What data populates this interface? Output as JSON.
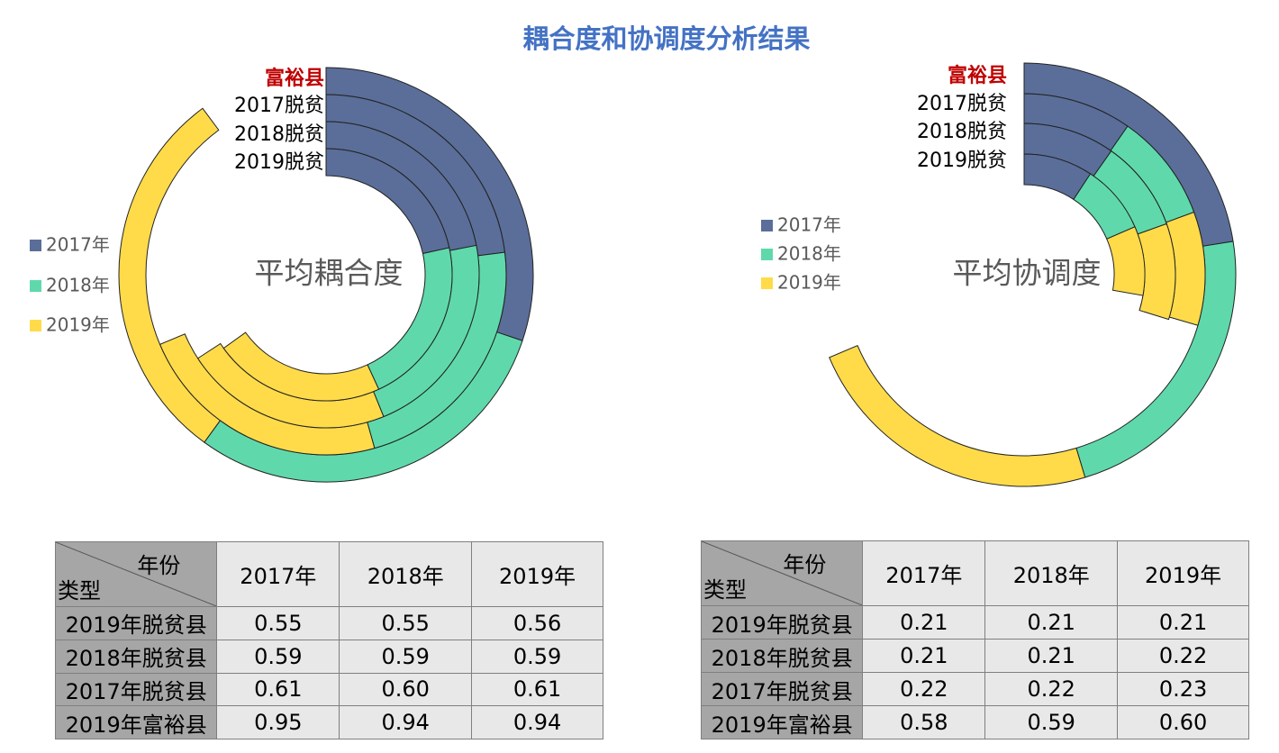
{
  "title": "耦合度和协调度分析结果",
  "colors": {
    "2017年": "#5a6e99",
    "2018年": "#5fd9ac",
    "2019年": "#ffdb4a",
    "highlight": "#c00000",
    "title": "#4472c4"
  },
  "chart_data": [
    {
      "type": "radial-bar-stacked",
      "center_label": "平均耦合度",
      "legend": [
        "2017年",
        "2018年",
        "2019年"
      ],
      "legend_position": "left",
      "rings": [
        {
          "label": "富裕县",
          "values": [
            0.95,
            0.94,
            0.94
          ],
          "axis_max": 3.15
        },
        {
          "label": "2017脱贫",
          "values": [
            0.61,
            0.6,
            0.61
          ],
          "axis_max": 2.65
        },
        {
          "label": "2018脱贫",
          "values": [
            0.59,
            0.59,
            0.59
          ],
          "axis_max": 2.69
        },
        {
          "label": "2019脱贫",
          "values": [
            0.55,
            0.55,
            0.56
          ],
          "axis_max": 2.55
        }
      ]
    },
    {
      "type": "radial-bar-stacked",
      "center_label": "平均协调度",
      "legend": [
        "2017年",
        "2018年",
        "2019年"
      ],
      "legend_position": "left",
      "rings": [
        {
          "label": "富裕县",
          "values": [
            0.58,
            0.59,
            0.6
          ],
          "axis_max": 2.58
        },
        {
          "label": "2017脱贫",
          "values": [
            0.22,
            0.22,
            0.23
          ],
          "axis_max": 2.27
        },
        {
          "label": "2018脱贫",
          "values": [
            0.21,
            0.21,
            0.22
          ],
          "axis_max": 2.15
        },
        {
          "label": "2019脱贫",
          "values": [
            0.21,
            0.21,
            0.21
          ],
          "axis_max": 2.27
        }
      ]
    }
  ],
  "tables": [
    {
      "corner_top": "年份",
      "corner_bottom": "类型",
      "columns": [
        "2017年",
        "2018年",
        "2019年"
      ],
      "rows": [
        {
          "label": "2019年脱贫县",
          "values": [
            "0.55",
            "0.55",
            "0.56"
          ]
        },
        {
          "label": "2018年脱贫县",
          "values": [
            "0.59",
            "0.59",
            "0.59"
          ]
        },
        {
          "label": "2017年脱贫县",
          "values": [
            "0.61",
            "0.60",
            "0.61"
          ]
        },
        {
          "label": "2019年富裕县",
          "values": [
            "0.95",
            "0.94",
            "0.94"
          ]
        }
      ]
    },
    {
      "corner_top": "年份",
      "corner_bottom": "类型",
      "columns": [
        "2017年",
        "2018年",
        "2019年"
      ],
      "rows": [
        {
          "label": "2019年脱贫县",
          "values": [
            "0.21",
            "0.21",
            "0.21"
          ]
        },
        {
          "label": "2018年脱贫县",
          "values": [
            "0.21",
            "0.21",
            "0.22"
          ]
        },
        {
          "label": "2017年脱贫县",
          "values": [
            "0.22",
            "0.22",
            "0.23"
          ]
        },
        {
          "label": "2019年富裕县",
          "values": [
            "0.58",
            "0.59",
            "0.60"
          ]
        }
      ]
    }
  ]
}
